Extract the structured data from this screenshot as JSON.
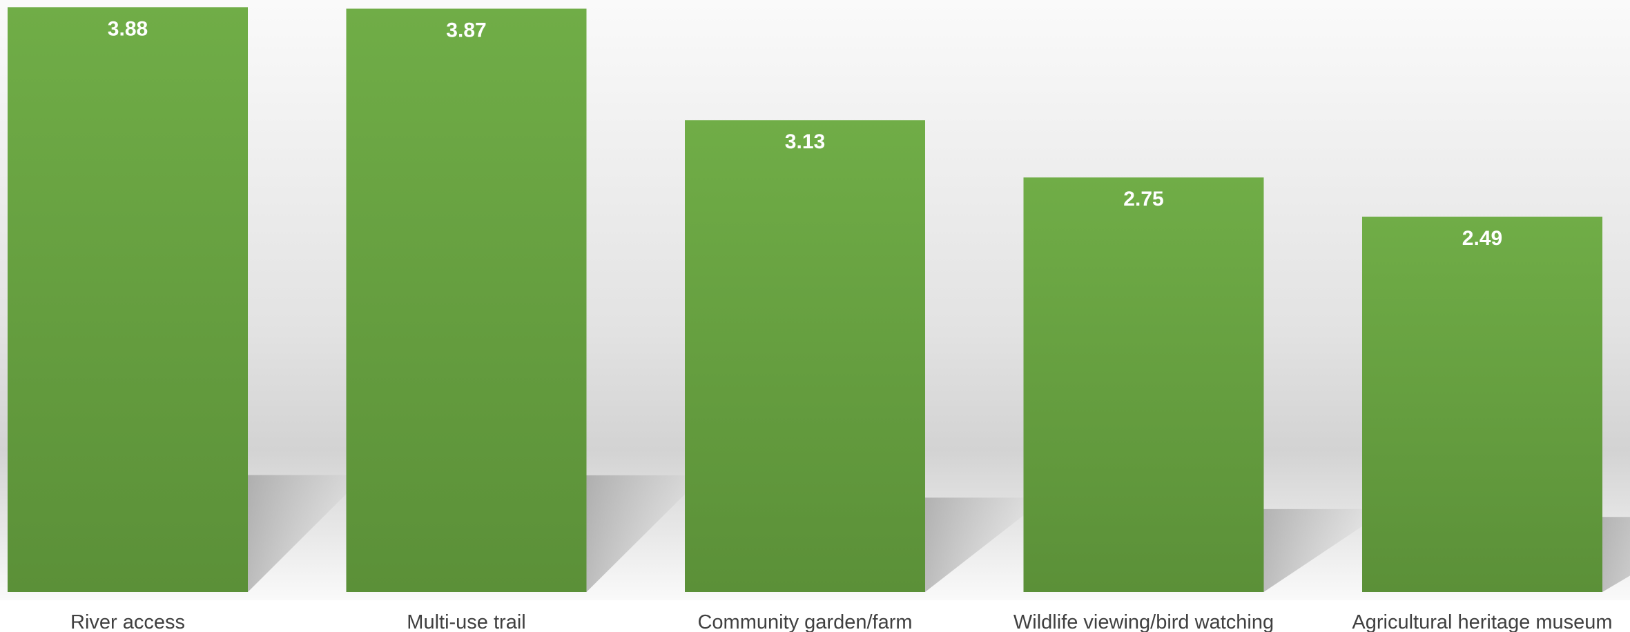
{
  "chart_data": {
    "type": "bar",
    "categories": [
      "River access",
      "Multi-use trail",
      "Community garden/farm",
      "Wildlife viewing/bird watching",
      "Agricultural heritage museum"
    ],
    "values": [
      3.88,
      3.87,
      3.13,
      2.75,
      2.49
    ],
    "data_labels": [
      "3.88",
      "3.87",
      "3.13",
      "2.75",
      "2.49"
    ],
    "title": "",
    "xlabel": "",
    "ylabel": "",
    "ylim": [
      0,
      3.9
    ],
    "grid": false,
    "legend": "none",
    "colors": {
      "bar_top": "#70ad47",
      "bar_bottom": "#5b9038",
      "label": "#ffffff",
      "category_text": "#404040"
    }
  }
}
